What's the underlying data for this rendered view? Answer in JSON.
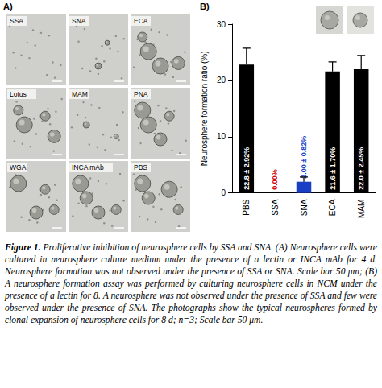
{
  "panel_a": {
    "label": "A)",
    "tiles": [
      "SSA",
      "SNA",
      "ECA",
      "Lotus",
      "MAM",
      "PNA",
      "WGA",
      "INCA mAb",
      "PBS"
    ]
  },
  "panel_b": {
    "label": "B)"
  },
  "chart_data": {
    "type": "bar",
    "y_label": "Neurosphere formation ratio (%)",
    "categories": [
      "PBS",
      "SSA",
      "SNA",
      "ECA",
      "MAM"
    ],
    "values": [
      22.8,
      0.0,
      2.0,
      21.6,
      22.0
    ],
    "value_labels": [
      "22.8 ± 2.92%",
      "0.00%",
      "2.00 ± 0.82%",
      "21.6 ± 1.70%",
      "22.0 ± 2.45%"
    ],
    "errors": [
      2.92,
      0,
      0.82,
      1.7,
      2.45
    ],
    "colors": [
      "#000000",
      "#d00000",
      "#1a3fc4",
      "#000000",
      "#000000"
    ],
    "ylim": [
      0,
      30
    ],
    "yticks": [
      0,
      10,
      20,
      30
    ],
    "grid": false,
    "data_labels": true
  },
  "caption": {
    "label": "Figure 1.",
    "text": "Proliferative inhibition of neurosphere cells by SSA and SNA. (A) Neurosphere cells were cultured in neurosphere culture medium under the presence of a lectin or INCA mAb for 4 d. Neurosphere formation was not observed under the presence of SSA or SNA. Scale bar 50 μm; (B) A neurosphere formation assay was performed by culturing neurosphere cells in NCM under the presence of a lectin for 8. A neurosphere was not observed under the presence of SSA and few were observed under the presence of SNA. The photographs show the typical neurospheres formed by clonal expansion of neurosphere cells for 8 d; n=3; Scale bar 50 μm."
  }
}
